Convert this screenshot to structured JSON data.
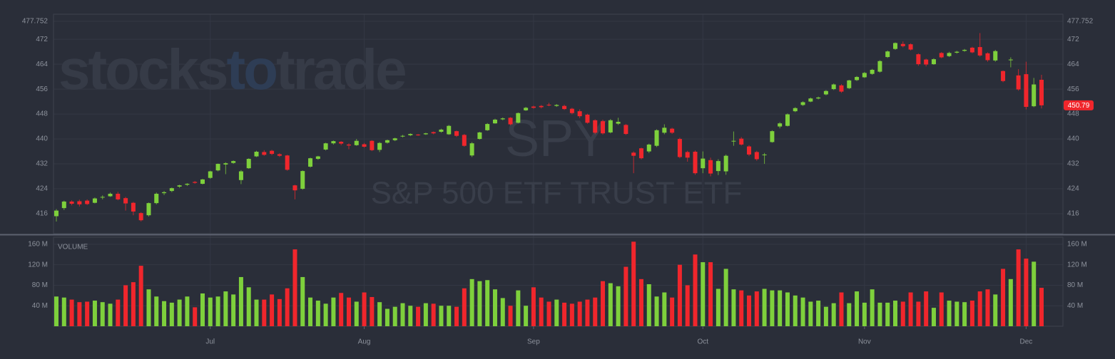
{
  "chart_data": {
    "type": "candlestick",
    "brand": [
      "stocks",
      "to",
      "trade"
    ],
    "symbol": "SPY",
    "title": "S&P 500 ETF TRUST ETF",
    "volume_label": "VOLUME",
    "up_color": "#7ed03c",
    "down_color": "#f0262c",
    "grid": true,
    "categories": [
      null,
      null,
      null,
      null,
      null,
      null,
      null,
      null,
      null,
      null,
      null,
      null,
      null,
      null,
      null,
      null,
      null,
      null,
      null,
      null,
      "Jul",
      null,
      null,
      null,
      null,
      null,
      null,
      null,
      null,
      null,
      null,
      null,
      null,
      null,
      null,
      null,
      null,
      null,
      null,
      null,
      "Aug",
      null,
      null,
      null,
      null,
      null,
      null,
      null,
      null,
      null,
      null,
      null,
      null,
      null,
      null,
      null,
      null,
      null,
      null,
      null,
      null,
      null,
      "Sep",
      null,
      null,
      null,
      null,
      null,
      null,
      null,
      null,
      null,
      null,
      null,
      null,
      null,
      null,
      null,
      null,
      null,
      null,
      null,
      null,
      null,
      "Oct",
      null,
      null,
      null,
      null,
      null,
      null,
      null,
      null,
      null,
      null,
      null,
      null,
      null,
      null,
      null,
      null,
      null,
      null,
      null,
      null,
      "Nov",
      null,
      null,
      null,
      null,
      null,
      null,
      null,
      null,
      null,
      null,
      null,
      null,
      null,
      null,
      null,
      null,
      null,
      null,
      null,
      null,
      "Dec",
      null,
      null
    ],
    "open": [
      415.2,
      417.8,
      419.9,
      420.0,
      420.2,
      419.5,
      421.3,
      421.6,
      422.4,
      421.0,
      419.5,
      416.2,
      415.5,
      419.4,
      422.6,
      423.3,
      424.7,
      425.3,
      426.2,
      425.6,
      427.5,
      429.9,
      431.8,
      432.3,
      426.8,
      430.6,
      434.4,
      435.8,
      436.2,
      435.1,
      434.7,
      425.1,
      424.0,
      431.1,
      433.6,
      436.6,
      438.6,
      439.1,
      438.2,
      438.0,
      438.3,
      439.4,
      436.5,
      438.8,
      439.6,
      440.8,
      441.2,
      441.4,
      441.5,
      442.2,
      442.3,
      441.5,
      442.5,
      441.3,
      434.7,
      440.0,
      442.8,
      445.0,
      446.3,
      446.8,
      445.2,
      449.2,
      450.4,
      450.6,
      451.0,
      450.6,
      450.6,
      449.7,
      448.9,
      447.8,
      446.0,
      445.7,
      442.1,
      444.9,
      444.5,
      435.6,
      437.0,
      436.0,
      437.8,
      442.0,
      443.3,
      440.0,
      435.8,
      435.9,
      430.6,
      433.2,
      429.7,
      429.6,
      439.2,
      440.1,
      437.6,
      435.8,
      434.8,
      439.0,
      444.0,
      444.2,
      448.9,
      450.9,
      452.0,
      453.0,
      454.3,
      456.0,
      457.2,
      456.3,
      458.9,
      459.8,
      460.9,
      461.6,
      466.3,
      468.9,
      470.5,
      470.4,
      467.2,
      465.5,
      464.0,
      467.6,
      466.6,
      467.7,
      468.3,
      469.3,
      469.5,
      467.5,
      465.2,
      461.8,
      465.4,
      460.4,
      460.8,
      450.5,
      459.0
    ],
    "high": [
      417.5,
      420.2,
      420.3,
      420.5,
      420.6,
      421.2,
      421.9,
      422.8,
      423.0,
      421.4,
      419.8,
      416.5,
      419.6,
      422.8,
      423.3,
      424.4,
      425.3,
      425.8,
      426.5,
      427.2,
      429.8,
      432.1,
      432.5,
      433.1,
      430.0,
      433.8,
      436.2,
      436.4,
      436.5,
      435.4,
      434.9,
      425.3,
      429.9,
      434.0,
      434.6,
      438.8,
      439.5,
      439.3,
      438.6,
      440.0,
      438.7,
      439.6,
      439.0,
      439.8,
      440.4,
      441.3,
      441.8,
      441.6,
      442.0,
      442.4,
      443.3,
      444.5,
      442.7,
      441.6,
      439.0,
      442.3,
      445.1,
      446.5,
      446.9,
      447.0,
      448.5,
      450.3,
      450.7,
      450.9,
      451.6,
      451.2,
      451.0,
      450.0,
      449.5,
      448.1,
      446.3,
      446.2,
      446.4,
      446.8,
      444.8,
      436.0,
      437.2,
      438.5,
      443.1,
      444.7,
      443.6,
      440.4,
      436.2,
      436.3,
      436.0,
      434.0,
      433.5,
      435.0,
      442.4,
      440.6,
      438.0,
      436.2,
      435.5,
      442.8,
      445.4,
      448.2,
      450.2,
      452.1,
      453.3,
      453.6,
      455.7,
      457.8,
      457.6,
      459.0,
      460.2,
      461.5,
      462.5,
      465.3,
      468.4,
      471.0,
      471.3,
      470.7,
      467.5,
      465.8,
      465.9,
      467.9,
      468.0,
      468.3,
      468.9,
      469.6,
      474.0,
      467.8,
      468.6,
      462.0,
      466.2,
      462.4,
      464.8,
      459.6,
      460.6
    ],
    "low": [
      413.5,
      417.2,
      418.7,
      418.3,
      418.8,
      419.3,
      420.6,
      421.4,
      420.3,
      417.0,
      415.5,
      413.5,
      415.1,
      419.0,
      422.0,
      422.9,
      424.3,
      424.9,
      425.6,
      425.4,
      427.2,
      429.6,
      428.7,
      432.0,
      425.5,
      430.4,
      434.2,
      434.6,
      434.8,
      434.2,
      429.8,
      420.6,
      423.7,
      430.8,
      433.3,
      436.3,
      438.2,
      438.0,
      436.7,
      437.8,
      437.2,
      436.1,
      435.8,
      438.5,
      439.3,
      440.5,
      440.9,
      441.0,
      441.3,
      441.5,
      442.0,
      441.3,
      440.6,
      437.5,
      434.2,
      439.8,
      442.6,
      444.9,
      446.0,
      444.4,
      445.0,
      449.0,
      449.7,
      449.8,
      450.5,
      450.3,
      449.3,
      447.9,
      446.7,
      444.9,
      441.5,
      441.4,
      441.8,
      444.5,
      441.3,
      429.0,
      433.4,
      435.5,
      437.4,
      441.5,
      441.6,
      433.8,
      432.7,
      428.5,
      429.0,
      428.0,
      428.4,
      428.5,
      437.8,
      437.9,
      434.5,
      433.0,
      432.0,
      438.8,
      443.4,
      444.0,
      448.6,
      450.6,
      451.8,
      452.7,
      454.0,
      455.7,
      454.8,
      456.0,
      458.6,
      459.6,
      460.6,
      461.3,
      466.0,
      468.6,
      469.4,
      468.4,
      463.5,
      463.3,
      463.8,
      465.9,
      466.3,
      467.4,
      468.0,
      467.5,
      466.4,
      464.8,
      464.8,
      458.2,
      463.0,
      455.5,
      449.5,
      450.2,
      449.8
    ],
    "close": [
      417.0,
      419.9,
      419.2,
      419.0,
      419.1,
      420.9,
      421.4,
      422.4,
      420.6,
      419.3,
      416.7,
      413.9,
      419.4,
      422.4,
      422.9,
      424.2,
      425.1,
      425.6,
      425.9,
      427.0,
      429.6,
      432.0,
      432.2,
      432.9,
      429.6,
      433.6,
      435.9,
      434.9,
      435.2,
      434.6,
      430.1,
      423.5,
      429.7,
      433.8,
      434.4,
      438.6,
      439.3,
      438.5,
      437.9,
      439.4,
      437.5,
      436.4,
      438.7,
      439.6,
      440.2,
      441.0,
      441.6,
      441.3,
      441.8,
      441.8,
      443.0,
      444.2,
      441.0,
      437.8,
      438.6,
      442.1,
      444.8,
      446.2,
      446.6,
      444.7,
      448.3,
      450.0,
      450.0,
      450.2,
      450.9,
      450.9,
      449.6,
      448.3,
      447.3,
      445.2,
      442.0,
      441.8,
      446.0,
      445.5,
      441.6,
      434.6,
      433.8,
      438.2,
      442.8,
      443.6,
      442.0,
      434.2,
      434.0,
      429.0,
      433.7,
      428.9,
      432.9,
      434.6,
      439.4,
      438.2,
      435.0,
      433.5,
      435.0,
      442.5,
      445.0,
      447.9,
      449.9,
      451.8,
      453.0,
      453.3,
      455.4,
      457.5,
      455.2,
      458.8,
      459.9,
      461.2,
      462.2,
      465.0,
      468.1,
      470.8,
      469.8,
      468.7,
      464.0,
      463.9,
      465.6,
      466.2,
      467.6,
      468.0,
      468.6,
      467.8,
      466.8,
      465.3,
      468.2,
      458.6,
      465.5,
      455.9,
      450.3,
      457.5,
      450.79
    ],
    "volume": [
      58,
      56,
      52,
      47,
      48,
      50,
      47,
      44,
      52,
      80,
      86,
      118,
      72,
      58,
      49,
      46,
      52,
      58,
      37,
      64,
      56,
      58,
      68,
      62,
      96,
      76,
      52,
      52,
      62,
      53,
      74,
      150,
      96,
      56,
      50,
      44,
      56,
      65,
      56,
      48,
      66,
      57,
      47,
      34,
      38,
      45,
      40,
      38,
      45,
      44,
      40,
      40,
      38,
      74,
      92,
      88,
      90,
      72,
      55,
      40,
      70,
      40,
      76,
      56,
      48,
      52,
      46,
      44,
      48,
      52,
      56,
      88,
      84,
      78,
      116,
      165,
      92,
      82,
      58,
      66,
      56,
      120,
      80,
      140,
      125,
      125,
      73,
      112,
      72,
      70,
      60,
      68,
      73,
      70,
      70,
      66,
      60,
      56,
      48,
      50,
      38,
      45,
      66,
      45,
      68,
      46,
      72,
      46,
      46,
      50,
      48,
      66,
      48,
      68,
      36,
      66,
      50,
      48,
      47,
      50,
      68,
      72,
      62,
      112,
      92,
      150,
      132,
      126,
      75
    ],
    "ylim": [
      409.6,
      477.752
    ],
    "yticks": [
      416,
      424,
      432,
      440,
      448,
      456,
      464,
      472,
      477.752
    ],
    "y2lim": [
      0,
      171
    ],
    "y2ticks": [
      {
        "value": 40,
        "label": "40 M"
      },
      {
        "value": 80,
        "label": "80 M"
      },
      {
        "value": 120,
        "label": "120 M"
      },
      {
        "value": 160,
        "label": "160 M"
      }
    ]
  }
}
